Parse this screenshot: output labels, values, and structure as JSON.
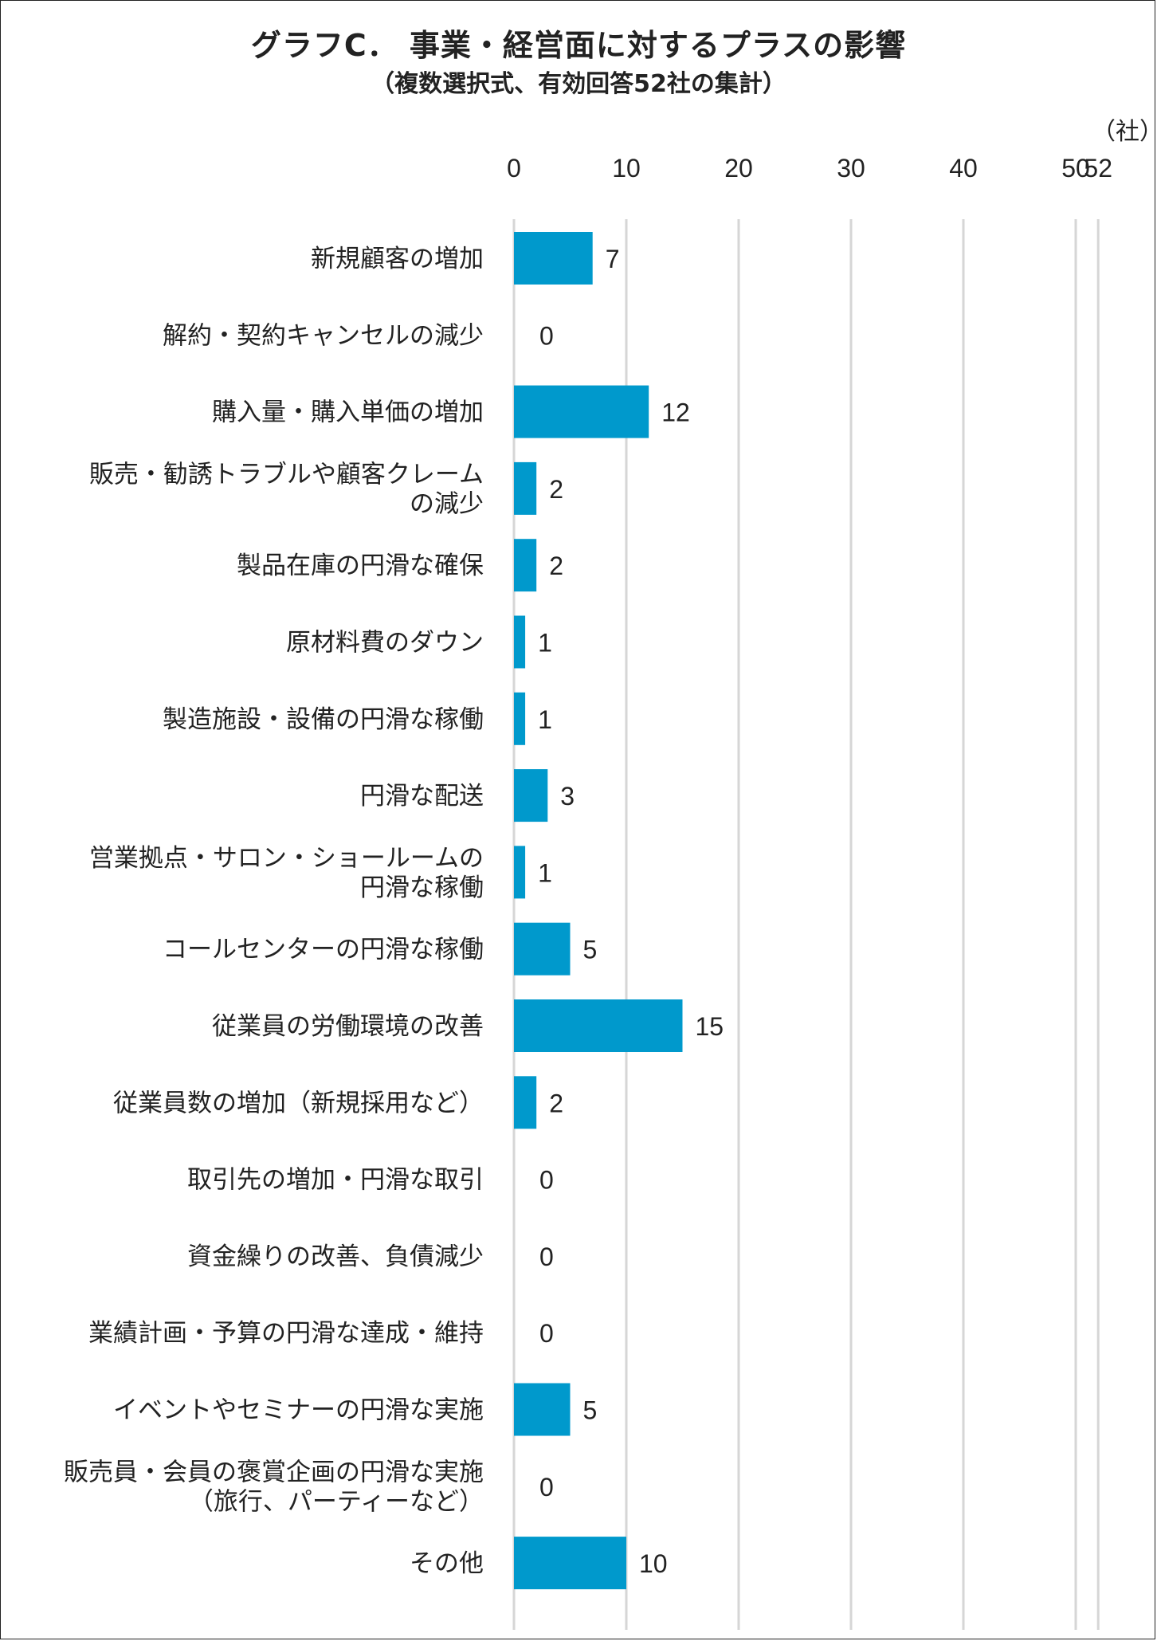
{
  "chart_data": {
    "type": "bar",
    "orientation": "horizontal",
    "title": "グラフC．  事業・経営面に対するプラスの影響",
    "subtitle": "（複数選択式、有効回答52社の集計）",
    "unit": "（社）",
    "xlim": [
      0,
      52
    ],
    "xticks": [
      0,
      10,
      20,
      30,
      40,
      50,
      52
    ],
    "grid": true,
    "bar_color": "#0099cc",
    "categories": [
      [
        "新規顧客の増加"
      ],
      [
        "解約・契約キャンセルの減少"
      ],
      [
        "購入量・購入単価の増加"
      ],
      [
        "販売・勧誘トラブルや顧客クレーム",
        "の減少"
      ],
      [
        "製品在庫の円滑な確保"
      ],
      [
        "原材料費のダウン"
      ],
      [
        "製造施設・設備の円滑な稼働"
      ],
      [
        "円滑な配送"
      ],
      [
        "営業拠点・サロン・ショールームの",
        "円滑な稼働"
      ],
      [
        "コールセンターの円滑な稼働"
      ],
      [
        "従業員の労働環境の改善"
      ],
      [
        "従業員数の増加（新規採用など）"
      ],
      [
        "取引先の増加・円滑な取引"
      ],
      [
        "資金繰りの改善、負債減少"
      ],
      [
        "業績計画・予算の円滑な達成・維持"
      ],
      [
        "イベントやセミナーの円滑な実施"
      ],
      [
        "販売員・会員の褒賞企画の円滑な実施",
        "（旅行、パーティーなど）"
      ],
      [
        "その他"
      ]
    ],
    "values": [
      7,
      0,
      12,
      2,
      2,
      1,
      1,
      3,
      1,
      5,
      15,
      2,
      0,
      0,
      0,
      5,
      0,
      10
    ]
  }
}
